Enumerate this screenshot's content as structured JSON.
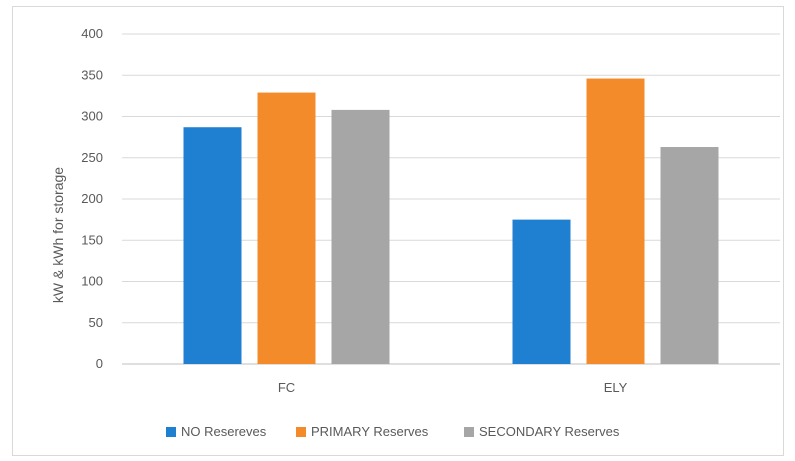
{
  "chart_data": {
    "type": "bar",
    "title": "",
    "xlabel": "",
    "ylabel": "kW & kWh for storage",
    "ylim": [
      0,
      400
    ],
    "yticks": [
      0,
      50,
      100,
      150,
      200,
      250,
      300,
      350,
      400
    ],
    "categories": [
      "FC",
      "ELY"
    ],
    "grid": true,
    "legend_position": "bottom",
    "series": [
      {
        "name": "NO Resereves",
        "color": "#1f7fd1",
        "values": [
          287,
          175
        ]
      },
      {
        "name": "PRIMARY Reserves",
        "color": "#f48b2b",
        "values": [
          329,
          346
        ]
      },
      {
        "name": "SECONDARY Reserves",
        "color": "#a6a6a6",
        "values": [
          308,
          263
        ]
      }
    ]
  }
}
